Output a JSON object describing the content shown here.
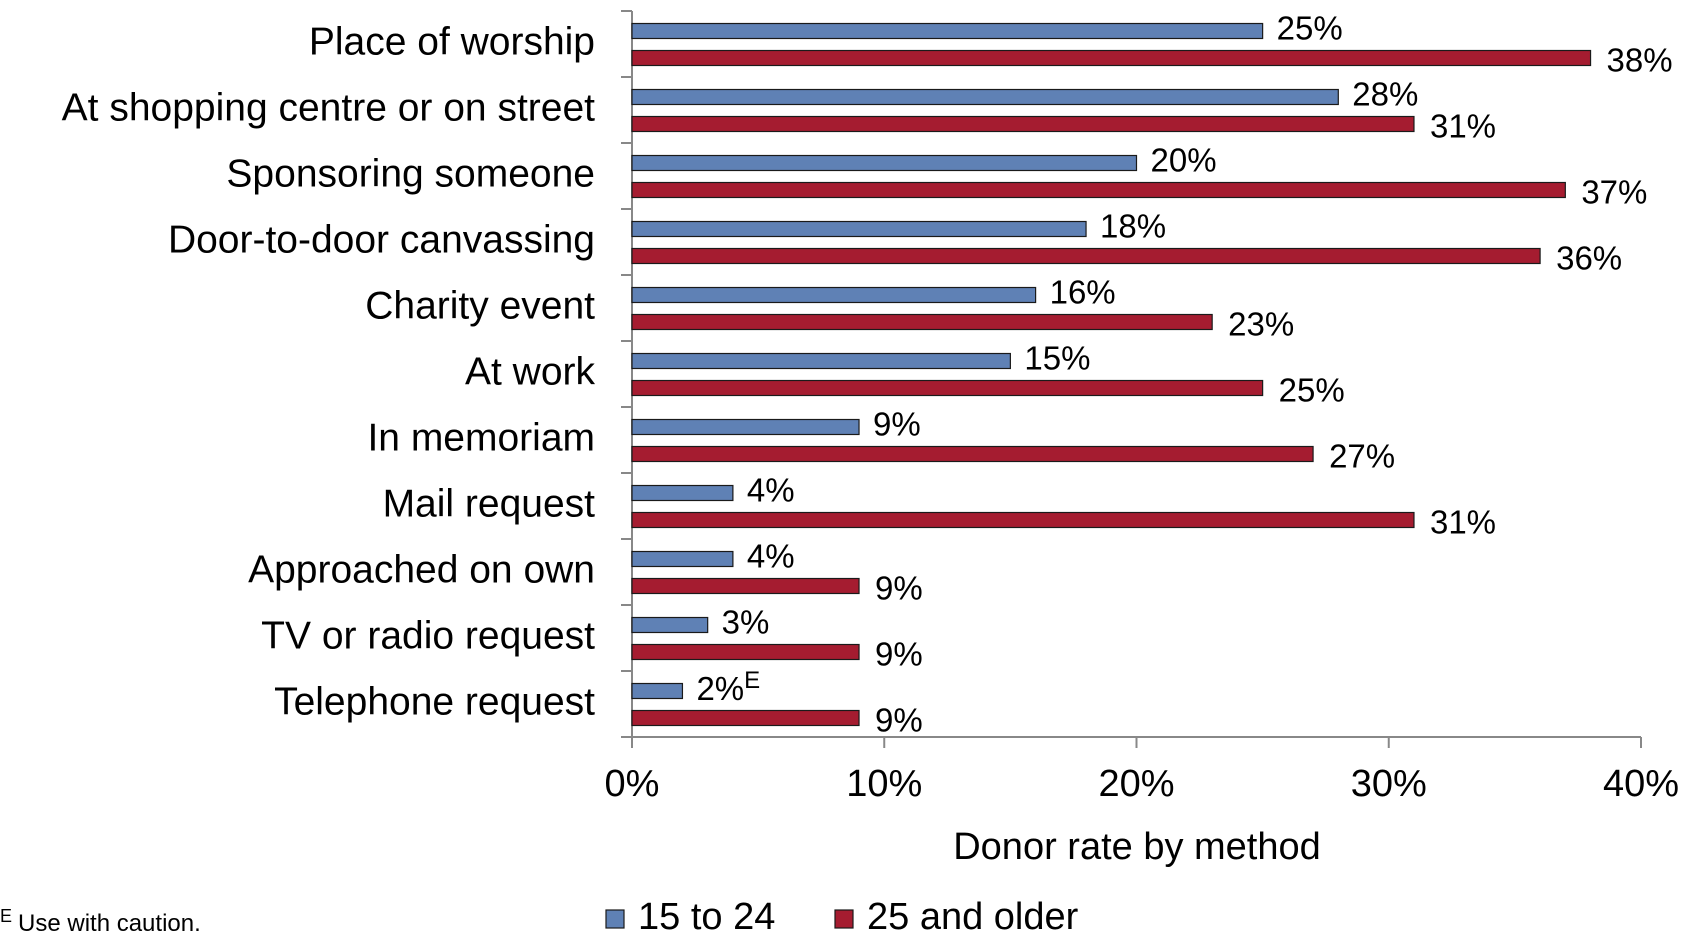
{
  "chart_data": {
    "type": "barh",
    "x_label": "Donor rate by method",
    "categories": [
      "Place of worship",
      "At shopping centre or on street",
      "Sponsoring someone",
      "Door-to-door canvassing",
      "Charity event",
      "At work",
      "In memoriam",
      "Mail request",
      "Approached on own",
      "TV or radio request",
      "Telephone request"
    ],
    "series": [
      {
        "name": "15 to 24",
        "color": "#5f81b5",
        "values": [
          25,
          28,
          20,
          18,
          16,
          15,
          9,
          4,
          4,
          3,
          2
        ],
        "value_labels": [
          "25%",
          "28%",
          "20%",
          "18%",
          "16%",
          "15%",
          "9%",
          "4%",
          "4%",
          "3%",
          "2%E"
        ]
      },
      {
        "name": "25 and older",
        "color": "#a51c30",
        "values": [
          38,
          31,
          37,
          36,
          23,
          25,
          27,
          31,
          9,
          9,
          9
        ],
        "value_labels": [
          "38%",
          "31%",
          "37%",
          "36%",
          "23%",
          "25%",
          "27%",
          "31%",
          "9%",
          "9%",
          "9%"
        ]
      }
    ],
    "xlim": [
      0,
      40
    ],
    "xticks": [
      {
        "value": 0,
        "label": "0%"
      },
      {
        "value": 10,
        "label": "10%"
      },
      {
        "value": 20,
        "label": "20%"
      },
      {
        "value": 30,
        "label": "30%"
      },
      {
        "value": 40,
        "label": "40%"
      }
    ],
    "legend": "bottom",
    "footnote": {
      "marker": "E",
      "text": "Use with caution."
    }
  }
}
